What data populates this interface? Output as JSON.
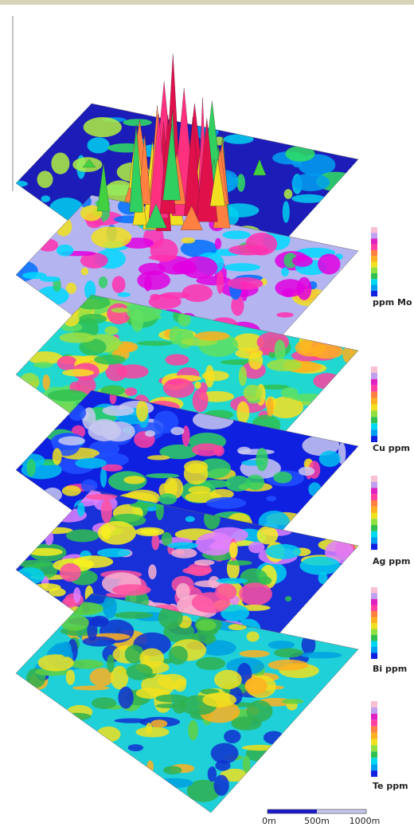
{
  "layers": [
    {
      "label": "ppm Mo"
    },
    {
      "label": "Cu ppm"
    },
    {
      "label": "Ag ppm"
    },
    {
      "label": "Bi ppm"
    },
    {
      "label": "Te ppm"
    }
  ],
  "scale_bar": {
    "labels": [
      "0m",
      "500m",
      "1000m"
    ]
  }
}
